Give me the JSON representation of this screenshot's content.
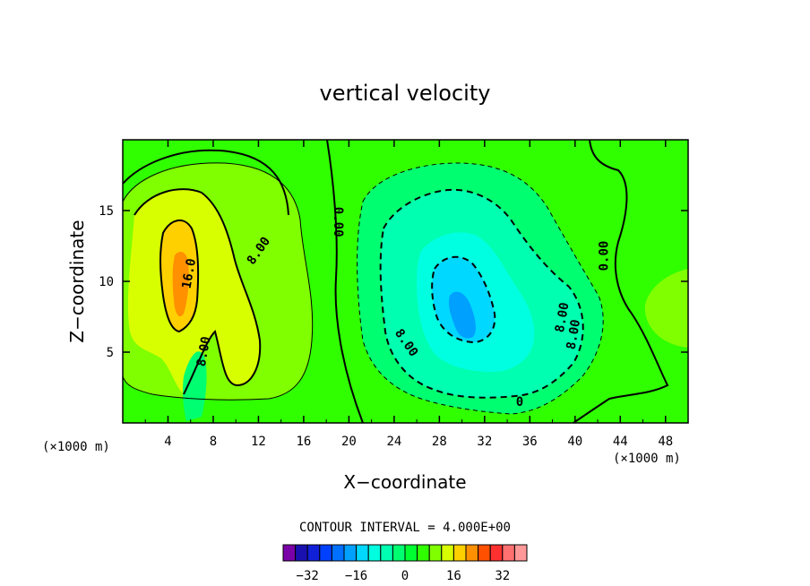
{
  "chart_data": {
    "type": "contour",
    "title": "vertical velocity",
    "xlabel": "X−coordinate",
    "ylabel": "Z−coordinate",
    "x_unit": "(×1000 m)",
    "z_unit": "(×1000 m)",
    "xlim": [
      0,
      50
    ],
    "ylim": [
      0,
      20
    ],
    "x_ticks": [
      "4",
      "8",
      "12",
      "16",
      "20",
      "24",
      "28",
      "32",
      "36",
      "40",
      "44",
      "48"
    ],
    "x_tick_values": [
      4,
      8,
      12,
      16,
      20,
      24,
      28,
      32,
      36,
      40,
      44,
      48
    ],
    "y_ticks": [
      "5",
      "10",
      "15"
    ],
    "y_tick_values": [
      5,
      10,
      15
    ],
    "contour_interval_label": "CONTOUR INTERVAL = 4.000E+00",
    "contour_labels": [
      "16.0",
      "8.00",
      "8.00",
      "0.00",
      "8.00",
      "8.00",
      "0.00",
      "8.00",
      "0"
    ],
    "colorbar": {
      "levels": [
        -36,
        -32,
        -28,
        -24,
        -20,
        -16,
        -12,
        -8,
        -4,
        0,
        4,
        8,
        12,
        16,
        20,
        24,
        28,
        32,
        36
      ],
      "tick_labels": [
        "−32",
        "−16",
        "0",
        "16",
        "32"
      ],
      "tick_values": [
        -32,
        -16,
        0,
        16,
        32
      ],
      "colors": [
        "#7a00a8",
        "#1a10b0",
        "#1020d8",
        "#0040ff",
        "#0070ff",
        "#00a0ff",
        "#00d8ff",
        "#00ffe0",
        "#00ffb0",
        "#00ff70",
        "#00ff30",
        "#30ff00",
        "#80ff00",
        "#d8ff00",
        "#ffd000",
        "#ff9000",
        "#ff5000",
        "#ff3030",
        "#ff7070",
        "#ff9898"
      ]
    },
    "background_color": "#30ff00",
    "notes_colors": {
      "contour_line": "#000000"
    }
  }
}
